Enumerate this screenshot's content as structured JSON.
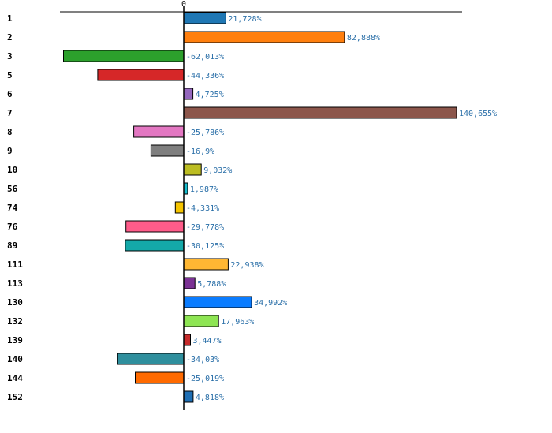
{
  "chart_data": {
    "type": "bar",
    "orientation": "horizontal",
    "title": "",
    "xlabel": "",
    "ylabel": "",
    "zero_label": "0",
    "grid": false,
    "legend": "none",
    "xlim": [
      -66,
      155
    ],
    "categories": [
      "1",
      "2",
      "3",
      "5",
      "6",
      "7",
      "8",
      "9",
      "10",
      "56",
      "74",
      "76",
      "89",
      "111",
      "113",
      "130",
      "132",
      "139",
      "140",
      "144",
      "152"
    ],
    "values": [
      21.728,
      82.888,
      -62.013,
      -44.336,
      4.725,
      140.655,
      -25.786,
      -16.9,
      9.032,
      1.987,
      -4.331,
      -29.778,
      -30.125,
      22.938,
      5.788,
      34.992,
      17.963,
      3.447,
      -34.03,
      -25.019,
      4.818
    ],
    "value_labels": [
      "21,728%",
      "82,888%",
      "-62,013%",
      "-44,336%",
      "4,725%",
      "140,655%",
      "-25,786%",
      "-16,9%",
      "9,032%",
      "1,987%",
      "-4,331%",
      "-29,778%",
      "-30,125%",
      "22,938%",
      "5,788%",
      "34,992%",
      "17,963%",
      "3,447%",
      "-34,03%",
      "-25,019%",
      "4,818%"
    ],
    "colors": [
      "#1f77b4",
      "#ff7f0e",
      "#2ca02c",
      "#d62728",
      "#9467bd",
      "#8c564b",
      "#e377c2",
      "#7f7f7f",
      "#bcbd22",
      "#17becf",
      "#f5c400",
      "#ff5c8a",
      "#14a9a9",
      "#ffb733",
      "#7b3294",
      "#0a7cff",
      "#8ee553",
      "#c62b2b",
      "#2f8f9d",
      "#ff6a00",
      "#1f6fb4"
    ]
  }
}
